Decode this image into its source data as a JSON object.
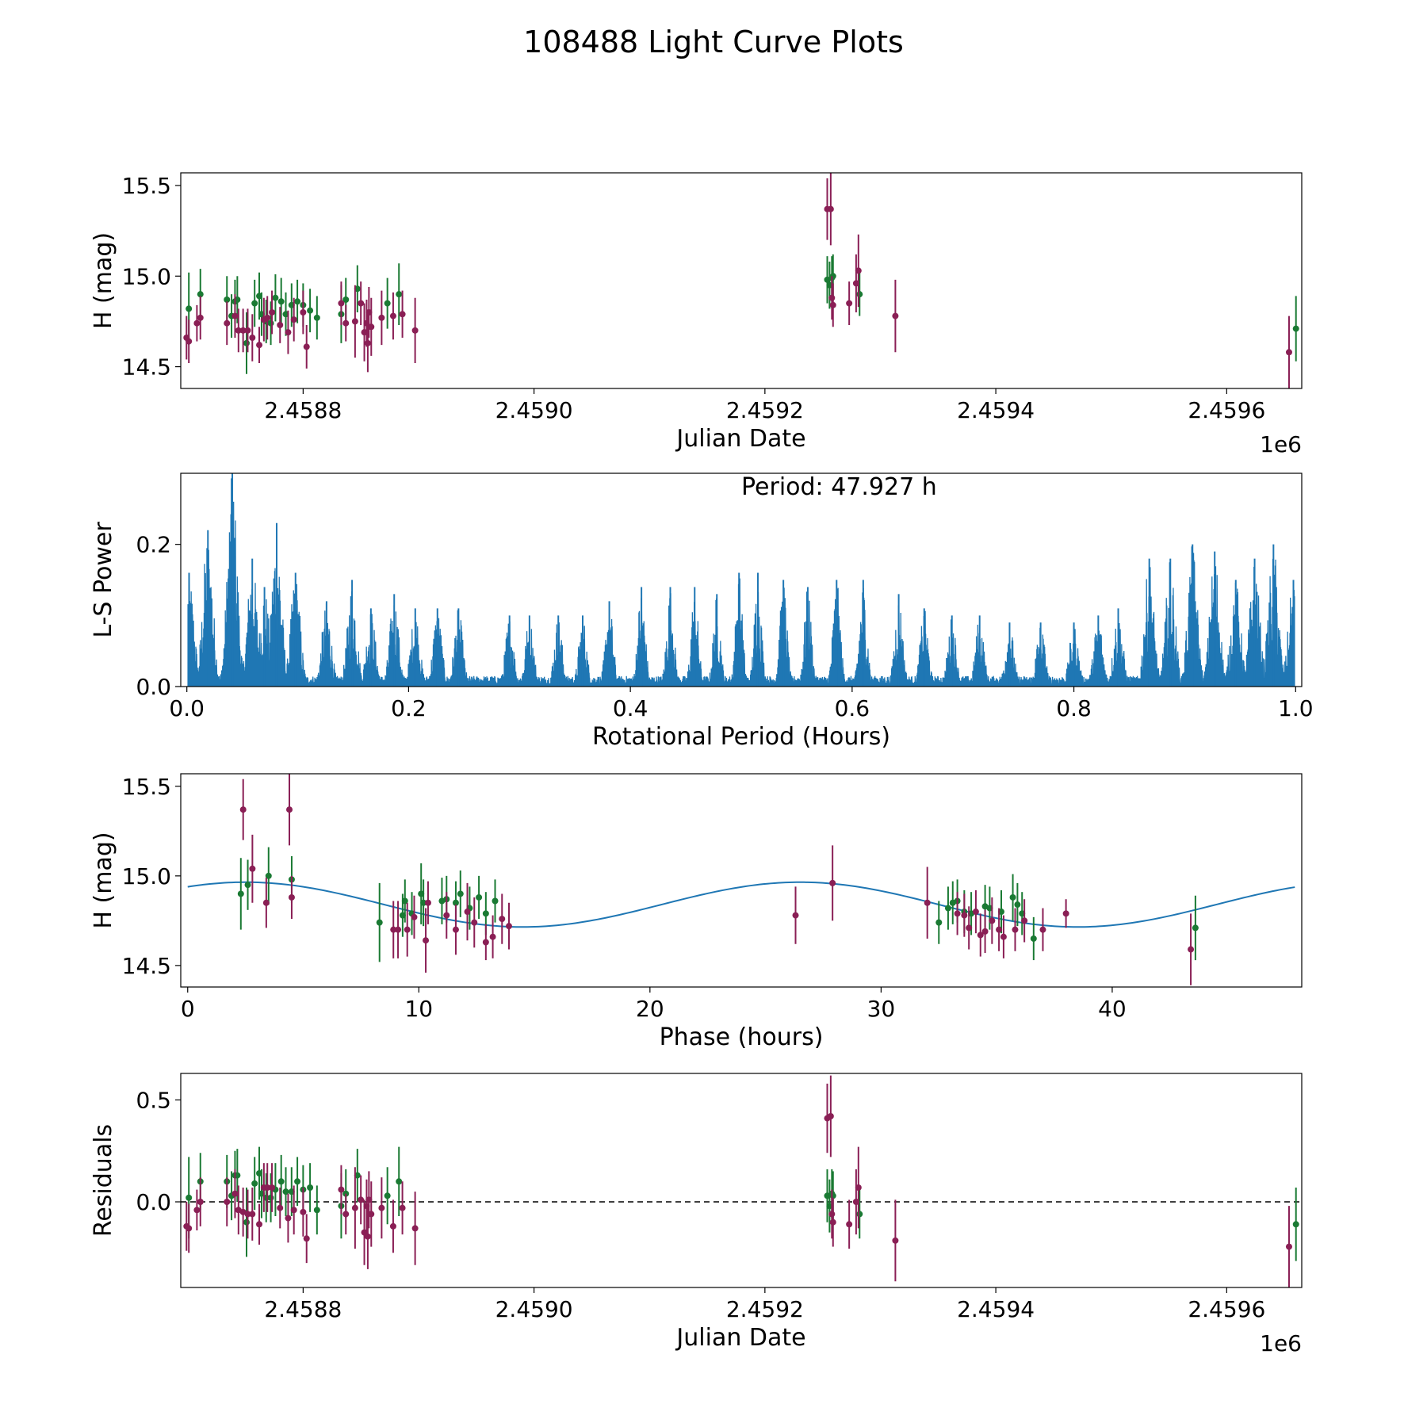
{
  "figure": {
    "title": "108488 Light Curve Plots",
    "colors": {
      "green": "#1a7a33",
      "maroon": "#8a1f55",
      "blue": "#1f77b4",
      "black": "#000000"
    }
  },
  "chart_data": [
    {
      "type": "scatter",
      "name": "lightcurve",
      "title": "",
      "xlabel": "Julian Date",
      "ylabel": "H (mag)",
      "offset_label": "1e6",
      "xlim": [
        2458694,
        2459665
      ],
      "ylim": [
        14.38,
        15.57
      ],
      "xticks": [
        2458800,
        2459000,
        2459200,
        2459400,
        2459600
      ],
      "xtick_labels": [
        "2.4588",
        "2.4590",
        "2.4592",
        "2.4594",
        "2.4596"
      ],
      "yticks": [
        14.5,
        15.0,
        15.5
      ],
      "ytick_labels": [
        "14.5",
        "15.0",
        "15.5"
      ],
      "series": [
        {
          "name": "green",
          "color": "#1a7a33",
          "x": [
            2458701,
            2458711,
            2458734,
            2458738,
            2458741,
            2458743,
            2458751,
            2458758,
            2458762,
            2458764,
            2458768,
            2458772,
            2458776,
            2458781,
            2458785,
            2458790,
            2458795,
            2458800,
            2458806,
            2458812,
            2458833,
            2458837,
            2458847,
            2458873,
            2458883,
            2459254,
            2459256,
            2459258,
            2459259,
            2459282,
            2459660
          ],
          "y": [
            14.82,
            14.9,
            14.87,
            14.78,
            14.86,
            14.87,
            14.63,
            14.85,
            14.89,
            14.79,
            14.75,
            14.74,
            14.88,
            14.86,
            14.79,
            14.84,
            14.86,
            14.84,
            14.81,
            14.77,
            14.79,
            14.87,
            14.93,
            14.85,
            14.9,
            14.98,
            14.95,
            14.99,
            15.0,
            14.9,
            14.71
          ],
          "err": [
            0.2,
            0.14,
            0.13,
            0.12,
            0.12,
            0.13,
            0.17,
            0.13,
            0.13,
            0.12,
            0.12,
            0.12,
            0.13,
            0.13,
            0.12,
            0.12,
            0.12,
            0.12,
            0.12,
            0.12,
            0.16,
            0.12,
            0.13,
            0.14,
            0.17,
            0.13,
            0.13,
            0.12,
            0.12,
            0.12,
            0.18
          ]
        },
        {
          "name": "maroon",
          "color": "#8a1f55",
          "x": [
            2458699,
            2458701,
            2458708,
            2458711,
            2458734,
            2458741,
            2458744,
            2458748,
            2458752,
            2458756,
            2458762,
            2458766,
            2458769,
            2458773,
            2458780,
            2458787,
            2458792,
            2458800,
            2458803,
            2458833,
            2458837,
            2458845,
            2458850,
            2458853,
            2458855,
            2458856,
            2458857,
            2458859,
            2458868,
            2458878,
            2458886,
            2458897,
            2459254,
            2459257,
            2459258,
            2459259,
            2459273,
            2459279,
            2459281,
            2459313,
            2459654
          ],
          "y": [
            14.66,
            14.64,
            14.74,
            14.77,
            14.74,
            14.78,
            14.7,
            14.7,
            14.7,
            14.66,
            14.62,
            14.76,
            14.77,
            14.8,
            14.73,
            14.69,
            14.76,
            14.8,
            14.61,
            14.85,
            14.74,
            14.75,
            14.85,
            14.69,
            14.74,
            14.63,
            14.8,
            14.72,
            14.77,
            14.78,
            14.79,
            14.7,
            15.37,
            15.37,
            14.88,
            14.84,
            14.85,
            14.96,
            15.03,
            14.78,
            14.58
          ],
          "err": [
            0.12,
            0.12,
            0.1,
            0.12,
            0.12,
            0.12,
            0.12,
            0.12,
            0.12,
            0.13,
            0.1,
            0.12,
            0.12,
            0.12,
            0.1,
            0.12,
            0.12,
            0.12,
            0.12,
            0.12,
            0.1,
            0.2,
            0.12,
            0.16,
            0.13,
            0.16,
            0.14,
            0.16,
            0.15,
            0.13,
            0.13,
            0.18,
            0.17,
            0.2,
            0.12,
            0.12,
            0.12,
            0.16,
            0.2,
            0.2,
            0.2
          ]
        }
      ]
    },
    {
      "type": "line",
      "name": "periodogram",
      "title": "",
      "xlabel": "Rotational Period (Hours)",
      "ylabel": "L-S Power",
      "xlim": [
        -0.0055,
        1.0055
      ],
      "ylim": [
        0,
        0.3
      ],
      "xticks": [
        0.0,
        0.2,
        0.4,
        0.6,
        0.8,
        1.0
      ],
      "xtick_labels": [
        "0.0",
        "0.2",
        "0.4",
        "0.6",
        "0.8",
        "1.0"
      ],
      "yticks": [
        0.0,
        0.2
      ],
      "ytick_labels": [
        "0.0",
        "0.2"
      ],
      "annotation": "Period: 47.927 h",
      "series": [
        {
          "name": "L-S power",
          "color": "#1f77b4",
          "peaks": [
            {
              "x": 0.002,
              "y": 0.16
            },
            {
              "x": 0.019,
              "y": 0.22
            },
            {
              "x": 0.041,
              "y": 0.3
            },
            {
              "x": 0.059,
              "y": 0.18
            },
            {
              "x": 0.07,
              "y": 0.14
            },
            {
              "x": 0.081,
              "y": 0.23
            },
            {
              "x": 0.098,
              "y": 0.16
            },
            {
              "x": 0.126,
              "y": 0.12
            },
            {
              "x": 0.149,
              "y": 0.15
            },
            {
              "x": 0.166,
              "y": 0.11
            },
            {
              "x": 0.187,
              "y": 0.13
            },
            {
              "x": 0.206,
              "y": 0.11
            },
            {
              "x": 0.226,
              "y": 0.11
            },
            {
              "x": 0.245,
              "y": 0.11
            },
            {
              "x": 0.291,
              "y": 0.1
            },
            {
              "x": 0.309,
              "y": 0.1
            },
            {
              "x": 0.335,
              "y": 0.1
            },
            {
              "x": 0.357,
              "y": 0.1
            },
            {
              "x": 0.381,
              "y": 0.12
            },
            {
              "x": 0.41,
              "y": 0.14
            },
            {
              "x": 0.436,
              "y": 0.14
            },
            {
              "x": 0.458,
              "y": 0.14
            },
            {
              "x": 0.478,
              "y": 0.13
            },
            {
              "x": 0.498,
              "y": 0.16
            },
            {
              "x": 0.515,
              "y": 0.16
            },
            {
              "x": 0.538,
              "y": 0.15
            },
            {
              "x": 0.56,
              "y": 0.14
            },
            {
              "x": 0.586,
              "y": 0.15
            },
            {
              "x": 0.61,
              "y": 0.15
            },
            {
              "x": 0.642,
              "y": 0.13
            },
            {
              "x": 0.665,
              "y": 0.11
            },
            {
              "x": 0.69,
              "y": 0.1
            },
            {
              "x": 0.715,
              "y": 0.1
            },
            {
              "x": 0.742,
              "y": 0.09
            },
            {
              "x": 0.77,
              "y": 0.09
            },
            {
              "x": 0.8,
              "y": 0.09
            },
            {
              "x": 0.822,
              "y": 0.1
            },
            {
              "x": 0.84,
              "y": 0.11
            },
            {
              "x": 0.868,
              "y": 0.18
            },
            {
              "x": 0.887,
              "y": 0.18
            },
            {
              "x": 0.907,
              "y": 0.2
            },
            {
              "x": 0.927,
              "y": 0.19
            },
            {
              "x": 0.946,
              "y": 0.15
            },
            {
              "x": 0.963,
              "y": 0.18
            },
            {
              "x": 0.98,
              "y": 0.2
            },
            {
              "x": 0.998,
              "y": 0.15
            }
          ]
        }
      ]
    },
    {
      "type": "scatter",
      "name": "phased",
      "title": "",
      "xlabel": "Phase (hours)",
      "ylabel": "H (mag)",
      "xlim": [
        -0.3,
        48.2
      ],
      "ylim": [
        14.38,
        15.57
      ],
      "xticks": [
        0,
        10,
        20,
        30,
        40
      ],
      "xtick_labels": [
        "0",
        "10",
        "20",
        "30",
        "40"
      ],
      "yticks": [
        14.5,
        15.0,
        15.5
      ],
      "ytick_labels": [
        "14.5",
        "15.0",
        "15.5"
      ],
      "model": {
        "mean": 14.84,
        "amplitude": 0.125,
        "period": 24.0,
        "peak_phase": 2.5,
        "x_range": [
          0,
          47.9
        ],
        "color": "#1f77b4"
      },
      "series": [
        {
          "name": "green",
          "color": "#1a7a33",
          "x": [
            2.3,
            2.6,
            3.5,
            4.5,
            8.3,
            9.3,
            9.4,
            9.7,
            10.1,
            10.2,
            11.0,
            11.2,
            11.6,
            11.8,
            12.2,
            12.6,
            12.9,
            13.3,
            32.5,
            32.9,
            33.1,
            33.3,
            33.6,
            33.9,
            34.5,
            34.7,
            35.2,
            35.7,
            35.9,
            36.1,
            36.6,
            43.6
          ],
          "y": [
            14.9,
            14.95,
            15.0,
            14.98,
            14.74,
            14.78,
            14.86,
            14.79,
            14.9,
            14.85,
            14.86,
            14.87,
            14.85,
            14.9,
            14.82,
            14.88,
            14.79,
            14.86,
            14.74,
            14.82,
            14.85,
            14.86,
            14.8,
            14.79,
            14.83,
            14.82,
            14.8,
            14.88,
            14.84,
            14.79,
            14.65,
            14.71
          ],
          "err": [
            0.2,
            0.14,
            0.16,
            0.13,
            0.22,
            0.12,
            0.12,
            0.12,
            0.17,
            0.13,
            0.13,
            0.13,
            0.12,
            0.13,
            0.12,
            0.12,
            0.12,
            0.12,
            0.12,
            0.12,
            0.12,
            0.12,
            0.12,
            0.12,
            0.12,
            0.12,
            0.12,
            0.13,
            0.12,
            0.12,
            0.12,
            0.18
          ]
        },
        {
          "name": "maroon",
          "color": "#8a1f55",
          "x": [
            2.4,
            2.8,
            3.4,
            4.4,
            4.5,
            8.9,
            9.1,
            9.5,
            9.8,
            10.3,
            10.4,
            11.2,
            11.6,
            12.1,
            12.4,
            12.9,
            13.2,
            13.6,
            13.9,
            26.3,
            27.9,
            32.0,
            33.3,
            33.6,
            33.8,
            34.1,
            34.3,
            34.5,
            34.8,
            35.1,
            35.3,
            35.8,
            36.2,
            37.0,
            38.0,
            43.4
          ],
          "y": [
            15.37,
            15.04,
            14.85,
            15.37,
            14.88,
            14.7,
            14.7,
            14.7,
            14.77,
            14.64,
            14.85,
            14.78,
            14.7,
            14.8,
            14.74,
            14.63,
            14.66,
            14.76,
            14.72,
            14.78,
            14.96,
            14.85,
            14.79,
            14.78,
            14.71,
            14.8,
            14.67,
            14.69,
            14.75,
            14.7,
            14.66,
            14.7,
            14.75,
            14.7,
            14.79,
            14.59
          ],
          "err": [
            0.17,
            0.19,
            0.14,
            0.2,
            0.12,
            0.16,
            0.16,
            0.15,
            0.12,
            0.18,
            0.12,
            0.13,
            0.14,
            0.16,
            0.14,
            0.1,
            0.12,
            0.14,
            0.13,
            0.16,
            0.21,
            0.2,
            0.12,
            0.12,
            0.12,
            0.12,
            0.12,
            0.12,
            0.13,
            0.12,
            0.12,
            0.12,
            0.12,
            0.12,
            0.08,
            0.2
          ]
        }
      ]
    },
    {
      "type": "scatter",
      "name": "residuals",
      "title": "",
      "xlabel": "Julian Date",
      "ylabel": "Residuals",
      "offset_label": "1e6",
      "xlim": [
        2458694,
        2459665
      ],
      "ylim": [
        -0.42,
        0.63
      ],
      "xticks": [
        2458800,
        2459000,
        2459200,
        2459400,
        2459600
      ],
      "xtick_labels": [
        "2.4588",
        "2.4590",
        "2.4592",
        "2.4594",
        "2.4596"
      ],
      "yticks": [
        0.0,
        0.5
      ],
      "ytick_labels": [
        "0.0",
        "0.5"
      ],
      "zero_line": 0.0,
      "series": [
        {
          "name": "green",
          "color": "#1a7a33",
          "x": [
            2458701,
            2458711,
            2458734,
            2458738,
            2458741,
            2458743,
            2458751,
            2458758,
            2458762,
            2458764,
            2458768,
            2458772,
            2458776,
            2458781,
            2458785,
            2458790,
            2458795,
            2458800,
            2458806,
            2458812,
            2458833,
            2458837,
            2458847,
            2458873,
            2458883,
            2459254,
            2459256,
            2459258,
            2459259,
            2459282,
            2459660
          ],
          "y": [
            0.02,
            0.1,
            0.1,
            0.03,
            0.13,
            0.13,
            -0.1,
            0.09,
            0.14,
            0.04,
            0.02,
            0.02,
            0.06,
            0.1,
            0.05,
            0.05,
            0.1,
            0.06,
            0.07,
            -0.04,
            -0.02,
            0.04,
            0.13,
            0.03,
            0.1,
            0.03,
            -0.02,
            0.04,
            0.03,
            -0.06,
            -0.11
          ],
          "err": [
            0.2,
            0.14,
            0.13,
            0.12,
            0.12,
            0.13,
            0.17,
            0.13,
            0.13,
            0.12,
            0.12,
            0.12,
            0.13,
            0.13,
            0.12,
            0.12,
            0.12,
            0.12,
            0.12,
            0.12,
            0.16,
            0.12,
            0.13,
            0.14,
            0.17,
            0.13,
            0.13,
            0.12,
            0.12,
            0.12,
            0.18
          ]
        },
        {
          "name": "maroon",
          "color": "#8a1f55",
          "x": [
            2458699,
            2458701,
            2458708,
            2458711,
            2458734,
            2458741,
            2458744,
            2458748,
            2458752,
            2458756,
            2458762,
            2458766,
            2458769,
            2458773,
            2458780,
            2458787,
            2458792,
            2458800,
            2458803,
            2458833,
            2458837,
            2458845,
            2458850,
            2458853,
            2458855,
            2458856,
            2458857,
            2458859,
            2458868,
            2458878,
            2458886,
            2458897,
            2459254,
            2459257,
            2459258,
            2459259,
            2459273,
            2459279,
            2459281,
            2459313,
            2459654
          ],
          "y": [
            -0.12,
            -0.13,
            -0.04,
            0.0,
            0.0,
            0.04,
            -0.04,
            -0.05,
            -0.06,
            -0.06,
            -0.11,
            0.07,
            0.07,
            0.07,
            -0.03,
            -0.08,
            -0.04,
            -0.05,
            -0.18,
            0.06,
            -0.06,
            -0.03,
            0.01,
            -0.15,
            -0.02,
            -0.17,
            0.01,
            -0.06,
            -0.03,
            -0.12,
            -0.03,
            -0.13,
            0.41,
            0.42,
            -0.06,
            -0.1,
            -0.11,
            0.0,
            0.07,
            -0.19,
            -0.22
          ],
          "err": [
            0.12,
            0.12,
            0.1,
            0.12,
            0.12,
            0.12,
            0.12,
            0.12,
            0.12,
            0.13,
            0.1,
            0.12,
            0.12,
            0.12,
            0.1,
            0.12,
            0.12,
            0.12,
            0.12,
            0.12,
            0.1,
            0.2,
            0.12,
            0.16,
            0.13,
            0.16,
            0.14,
            0.16,
            0.15,
            0.13,
            0.13,
            0.18,
            0.17,
            0.2,
            0.12,
            0.12,
            0.12,
            0.16,
            0.2,
            0.2,
            0.2
          ]
        }
      ]
    }
  ]
}
